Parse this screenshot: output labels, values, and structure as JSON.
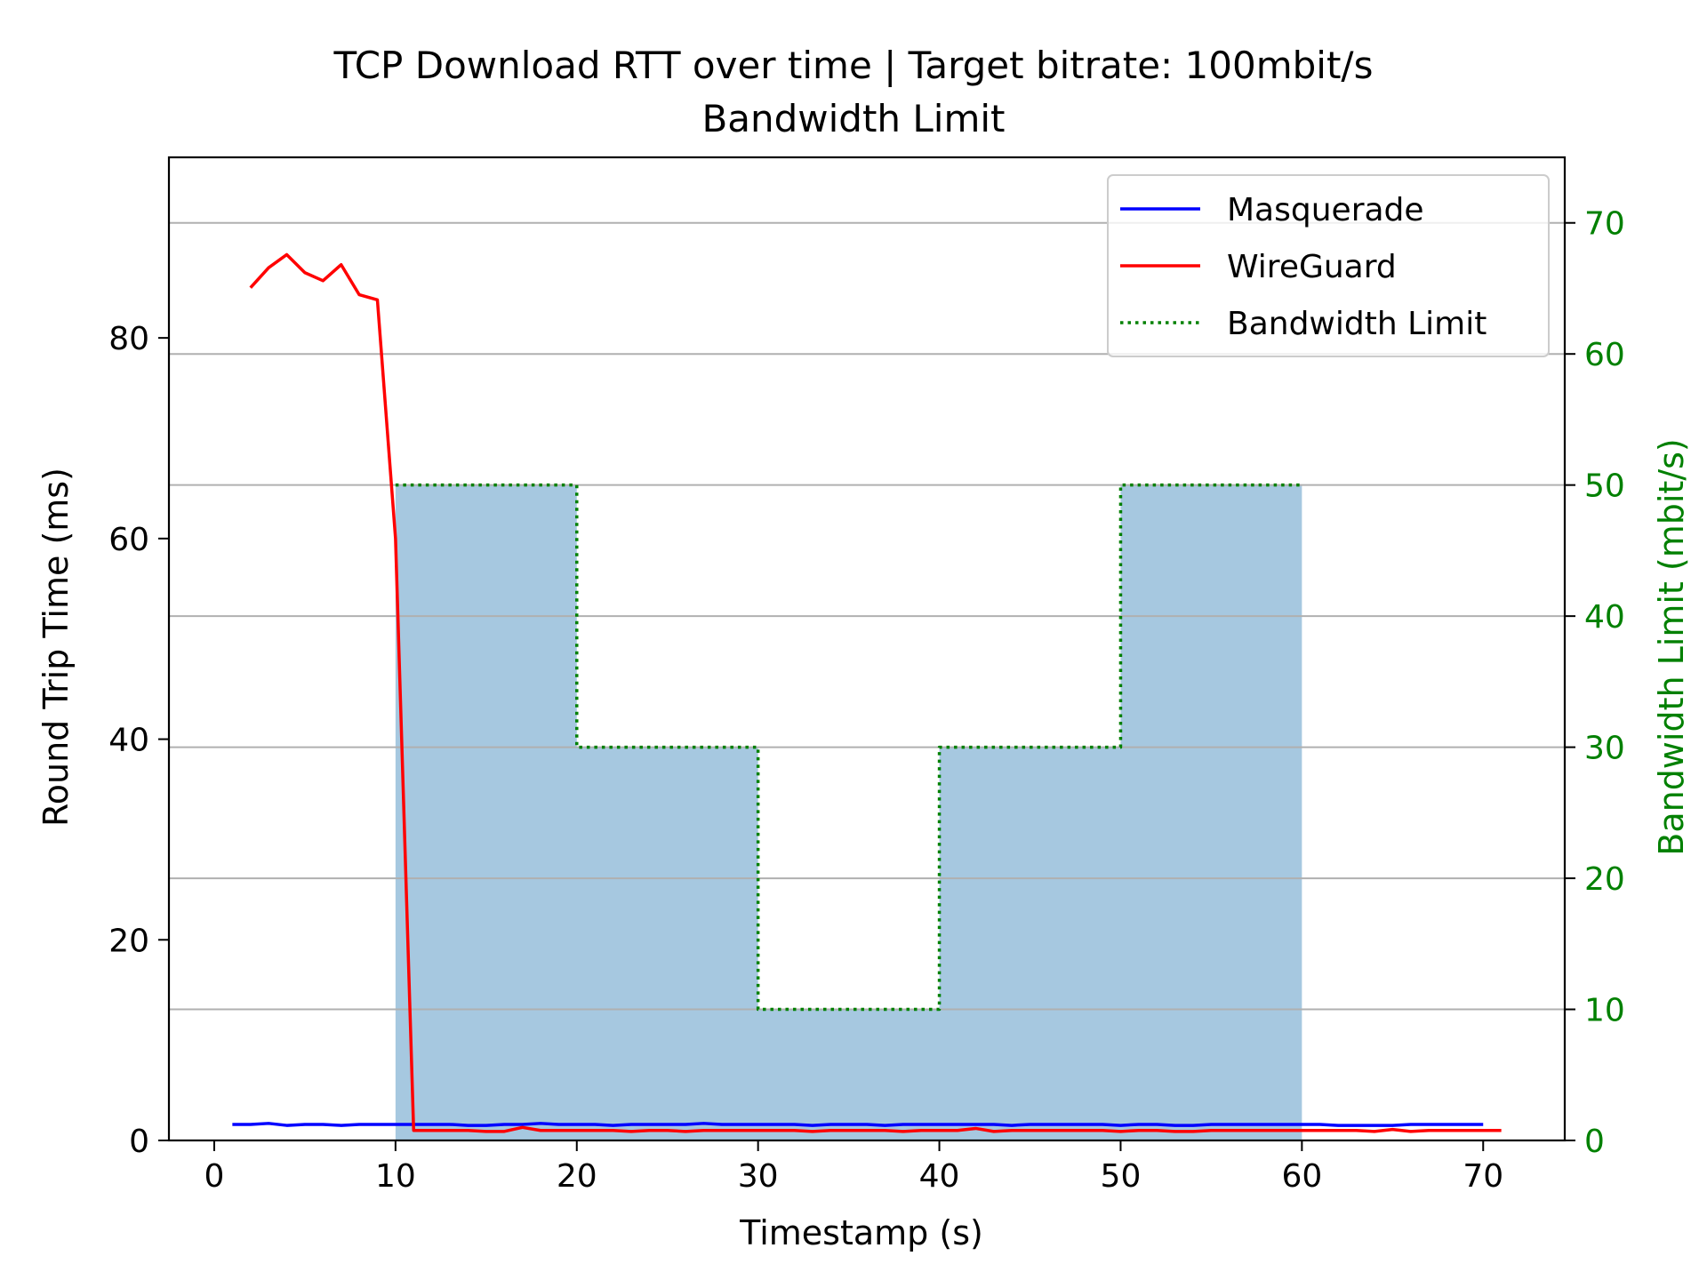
{
  "chart_data": {
    "type": "line",
    "title": "TCP Download RTT over time | Target bitrate: 100mbit/s",
    "subtitle": "Bandwidth Limit",
    "xlabel": "Timestamp (s)",
    "ylabel": "Round Trip Time (ms)",
    "y2label": "Bandwidth Limit (mbit/s)",
    "xlim": [
      -2.5,
      74.5
    ],
    "ylim": [
      0,
      98
    ],
    "y2lim": [
      0,
      75
    ],
    "xticks": [
      0,
      10,
      20,
      30,
      40,
      50,
      60,
      70
    ],
    "yticks": [
      0,
      20,
      40,
      60,
      80
    ],
    "y2ticks": [
      0,
      10,
      20,
      30,
      40,
      50,
      60,
      70
    ],
    "grid": "y2-major",
    "legend_position": "top-right",
    "colors": {
      "masquerade": "#0000ff",
      "wireguard": "#ff0000",
      "limit": "#008000",
      "fill": "#a6c8e0",
      "grid": "#b0b0b0",
      "axis2": "#008000"
    },
    "series": [
      {
        "name": "Masquerade",
        "axis": "left",
        "x": [
          1,
          2,
          3,
          4,
          5,
          6,
          7,
          8,
          9,
          10,
          11,
          12,
          13,
          14,
          15,
          16,
          17,
          18,
          19,
          20,
          21,
          22,
          23,
          24,
          25,
          26,
          27,
          28,
          29,
          30,
          31,
          32,
          33,
          34,
          35,
          36,
          37,
          38,
          39,
          40,
          41,
          42,
          43,
          44,
          45,
          46,
          47,
          48,
          49,
          50,
          51,
          52,
          53,
          54,
          55,
          56,
          57,
          58,
          59,
          60,
          61,
          62,
          63,
          64,
          65,
          66,
          67,
          68,
          69,
          70
        ],
        "y": [
          1.6,
          1.6,
          1.7,
          1.5,
          1.6,
          1.6,
          1.5,
          1.6,
          1.6,
          1.6,
          1.6,
          1.6,
          1.6,
          1.5,
          1.5,
          1.6,
          1.6,
          1.7,
          1.6,
          1.6,
          1.6,
          1.5,
          1.6,
          1.6,
          1.6,
          1.6,
          1.7,
          1.6,
          1.6,
          1.6,
          1.6,
          1.6,
          1.5,
          1.6,
          1.6,
          1.6,
          1.5,
          1.6,
          1.6,
          1.6,
          1.6,
          1.6,
          1.6,
          1.5,
          1.6,
          1.6,
          1.6,
          1.6,
          1.6,
          1.5,
          1.6,
          1.6,
          1.5,
          1.5,
          1.6,
          1.6,
          1.6,
          1.6,
          1.6,
          1.6,
          1.6,
          1.5,
          1.5,
          1.5,
          1.5,
          1.6,
          1.6,
          1.6,
          1.6,
          1.6
        ]
      },
      {
        "name": "WireGuard",
        "axis": "left",
        "x": [
          2,
          3,
          4,
          5,
          6,
          7,
          8,
          9,
          10,
          11,
          12,
          13,
          14,
          15,
          16,
          17,
          18,
          19,
          20,
          21,
          22,
          23,
          24,
          25,
          26,
          27,
          28,
          29,
          30,
          31,
          32,
          33,
          34,
          35,
          36,
          37,
          38,
          39,
          40,
          41,
          42,
          43,
          44,
          45,
          46,
          47,
          48,
          49,
          50,
          51,
          52,
          53,
          54,
          55,
          56,
          57,
          58,
          59,
          60,
          61,
          62,
          63,
          64,
          65,
          66,
          67,
          68,
          69,
          70,
          71
        ],
        "y": [
          85,
          87,
          88.3,
          86.5,
          85.7,
          87.3,
          84.3,
          83.8,
          60,
          1,
          1,
          1,
          1,
          0.9,
          0.9,
          1.3,
          1,
          1,
          1,
          1,
          1,
          0.9,
          1,
          1,
          0.9,
          1,
          1,
          1,
          1,
          1,
          1,
          0.9,
          1,
          1,
          1,
          1,
          0.9,
          1,
          1,
          1,
          1.2,
          0.9,
          1,
          1,
          1,
          1,
          1,
          1,
          0.9,
          1,
          1,
          0.9,
          0.9,
          1,
          1,
          1,
          1,
          1,
          1,
          1,
          1,
          1,
          0.9,
          1.1,
          0.9,
          1,
          1,
          1,
          1,
          1
        ]
      },
      {
        "name": "Bandwidth Limit",
        "axis": "right",
        "style": "dotted-step",
        "x": [
          10,
          20,
          20,
          30,
          30,
          40,
          40,
          50,
          50,
          60
        ],
        "y": [
          50,
          50,
          30,
          30,
          10,
          10,
          30,
          30,
          50,
          50
        ]
      }
    ],
    "fill_area": {
      "axis": "right",
      "x": [
        10,
        20,
        20,
        30,
        30,
        40,
        40,
        50,
        50,
        60
      ],
      "y": [
        50,
        50,
        30,
        30,
        10,
        10,
        30,
        30,
        50,
        50
      ]
    }
  }
}
